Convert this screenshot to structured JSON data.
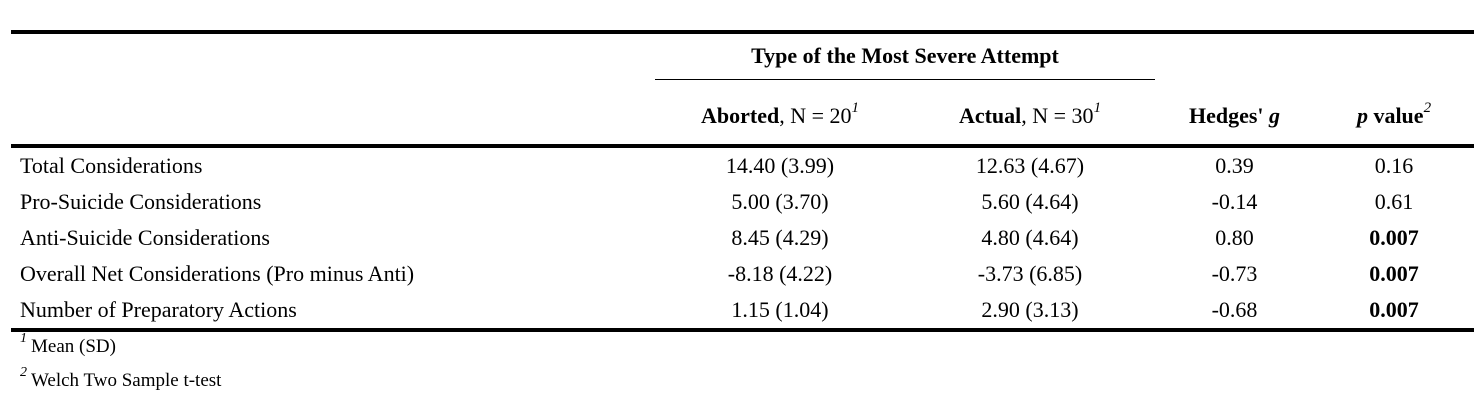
{
  "table": {
    "spanner_label": "Type of the Most Severe Attempt",
    "columns": {
      "aborted": {
        "name": "Aborted",
        "n_text": ", N = 20",
        "sup": "1"
      },
      "actual": {
        "name": "Actual",
        "n_text": ", N = 30",
        "sup": "1"
      },
      "hedges": {
        "name": "Hedges' ",
        "italic": "g"
      },
      "pvalue": {
        "italic": "p",
        "name": " value",
        "sup": "2"
      }
    },
    "rows": [
      {
        "label": "Total Considerations",
        "aborted": "14.40 (3.99)",
        "actual": "12.63 (4.67)",
        "hedges": "0.39",
        "p": "0.16",
        "p_bold": false
      },
      {
        "label": "Pro-Suicide Considerations",
        "aborted": "5.00 (3.70)",
        "actual": "5.60 (4.64)",
        "hedges": "-0.14",
        "p": "0.61",
        "p_bold": false
      },
      {
        "label": "Anti-Suicide Considerations",
        "aborted": "8.45 (4.29)",
        "actual": "4.80 (4.64)",
        "hedges": "0.80",
        "p": "0.007",
        "p_bold": true
      },
      {
        "label": "Overall Net Considerations (Pro minus Anti)",
        "aborted": "-8.18 (4.22)",
        "actual": "-3.73 (6.85)",
        "hedges": "-0.73",
        "p": "0.007",
        "p_bold": true
      },
      {
        "label": "Number of Preparatory Actions",
        "aborted": "1.15 (1.04)",
        "actual": "2.90 (3.13)",
        "hedges": "-0.68",
        "p": "0.007",
        "p_bold": true
      }
    ]
  },
  "footnotes": [
    {
      "marker": "1",
      "text": "Mean (SD)"
    },
    {
      "marker": "2",
      "text": "Welch Two Sample t-test"
    }
  ]
}
